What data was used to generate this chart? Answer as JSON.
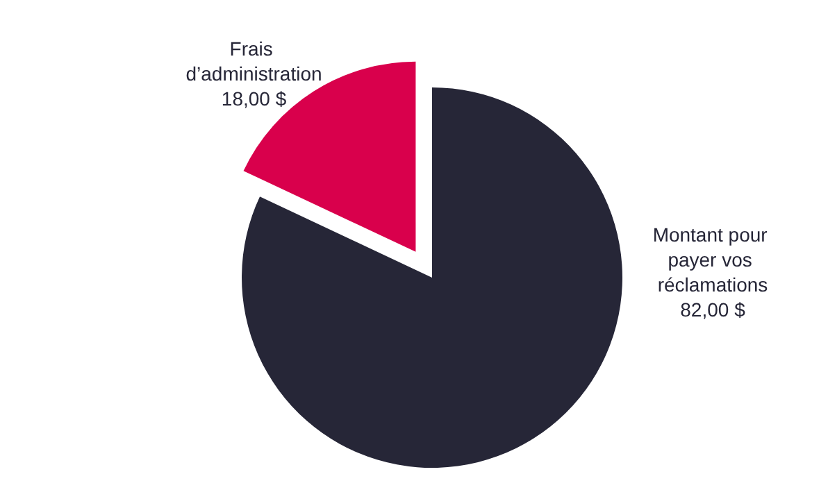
{
  "chart_data": {
    "type": "pie",
    "categories": [
      "Frais d’administration",
      "Montant pour payer vos réclamations"
    ],
    "values": [
      18,
      82
    ],
    "value_labels": [
      "18,00 $",
      "82,00 $"
    ],
    "colors": [
      "#d9004c",
      "#262637"
    ],
    "legend": false
  }
}
